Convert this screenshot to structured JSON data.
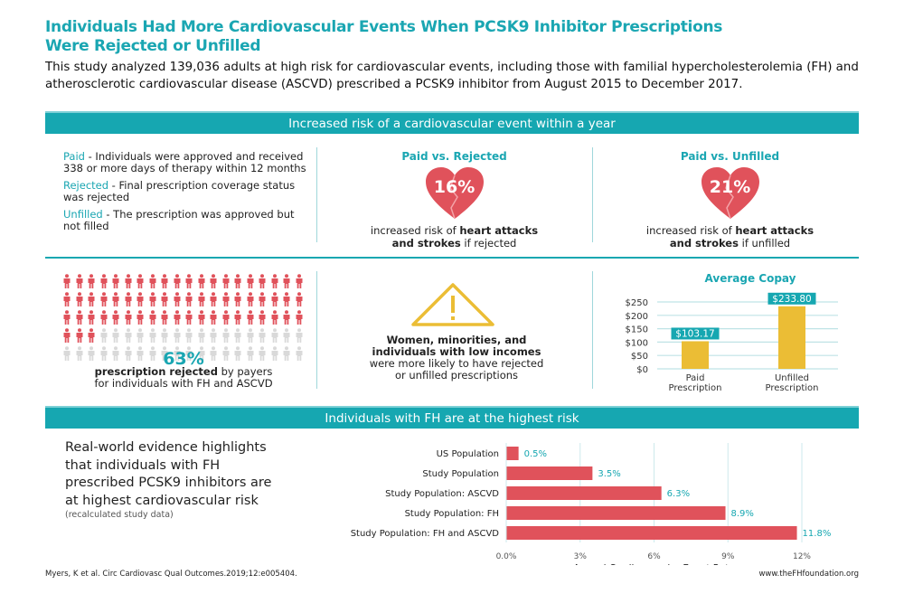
{
  "header": {
    "title_line1": "Individuals Had More Cardiovascular Events When PCSK9 Inhibitor Prescriptions",
    "title_line2": "Were Rejected or Unfilled",
    "intro": "This study analyzed 139,036 adults at high risk for cardiovascular events, including those with familial hypercholesterolemia (FH) and atherosclerotic cardiovascular disease (ASCVD) prescribed a PCSK9 inhibitor from August 2015 to December 2017."
  },
  "section1": {
    "banner": "Increased risk of a cardiovascular event within a year",
    "definitions": [
      {
        "term": "Paid",
        "text": " - Individuals were approved and received 338 or more days of therapy within 12 months"
      },
      {
        "term": "Rejected",
        "text": " - Final prescription coverage status was rejected"
      },
      {
        "term": "Unfilled",
        "text": " - The prescription was approved but not filled"
      }
    ],
    "comparisons": [
      {
        "title": "Paid vs. Rejected",
        "value": "16%",
        "pre": "increased risk of ",
        "bold1": "heart attacks",
        "bold2": "and strokes",
        "post": " if rejected"
      },
      {
        "title": "Paid vs. Unfilled",
        "value": "21%",
        "pre": "increased risk of ",
        "bold1": "heart attacks",
        "bold2": "and strokes",
        "post": " if unfilled"
      }
    ]
  },
  "section2": {
    "pictogram": {
      "total": 100,
      "highlighted": 63,
      "color_on": "#e0525b",
      "color_off": "#d9d9d9"
    },
    "percent": "63%",
    "caption_bold": "prescription rejected",
    "caption_rest": " by payers",
    "caption_line2": "for individuals with FH and ASCVD",
    "warning_bold1": "Women, minorities, and",
    "warning_bold2": "individuals with low incomes",
    "warning_line3": "were more likely to have rejected",
    "warning_line4": "or unfilled prescriptions"
  },
  "section3": {
    "banner": "Individuals with FH are at the highest risk",
    "text": "Real-world evidence highlights that individuals with FH prescribed PCSK9 inhibitors are at highest cardiovascular risk",
    "note": "(recalculated study data)"
  },
  "footer": {
    "citation": "Myers, K et al. Circ Cardiovasc Qual Outcomes.2019;12:e005404.",
    "url": "www.theFHfoundation.org"
  },
  "colors": {
    "teal": "#16a7b1",
    "red": "#e0525b",
    "gold": "#ebbd35"
  },
  "chart_data": [
    {
      "type": "bar",
      "title": "Average Copay",
      "categories": [
        "Paid Prescription",
        "Unfilled Prescription"
      ],
      "values": [
        103.17,
        233.8
      ],
      "data_labels": [
        "$103.17",
        "$233.80"
      ],
      "yticks": [
        "$0",
        "$50",
        "$100",
        "$150",
        "$200",
        "$250"
      ],
      "ylim": [
        0,
        250
      ],
      "grid": true
    },
    {
      "type": "bar",
      "orientation": "horizontal",
      "categories": [
        "US Population",
        "Study Population",
        "Study Population: ASCVD",
        "Study Population: FH",
        "Study Population: FH and ASCVD"
      ],
      "values": [
        0.5,
        3.5,
        6.3,
        8.9,
        11.8
      ],
      "data_labels": [
        "0.5%",
        "3.5%",
        "6.3%",
        "8.9%",
        "11.8%"
      ],
      "xticks": [
        "0.0%",
        "3%",
        "6%",
        "9%",
        "12%"
      ],
      "xlim": [
        0,
        12
      ],
      "xlabel": "Annual Cardiovascular Event Rate",
      "grid": true
    }
  ]
}
